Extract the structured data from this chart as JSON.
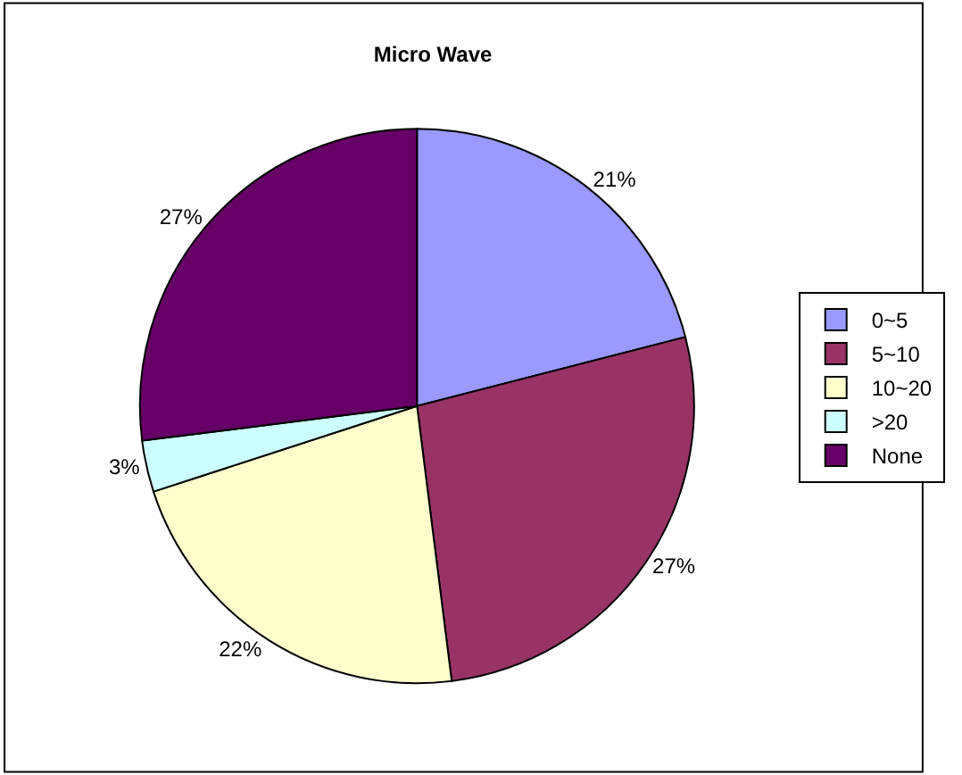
{
  "chart_data": {
    "type": "pie",
    "title": "Micro Wave",
    "categories": [
      "0~5",
      "5~10",
      "10~20",
      ">20",
      "None"
    ],
    "values": [
      21,
      27,
      22,
      3,
      27
    ],
    "value_labels": [
      "21%",
      "27%",
      "22%",
      "3%",
      "27%"
    ],
    "colors": [
      "#9999ff",
      "#993366",
      "#ffffcc",
      "#ccffff",
      "#660066"
    ],
    "legend": "right"
  }
}
